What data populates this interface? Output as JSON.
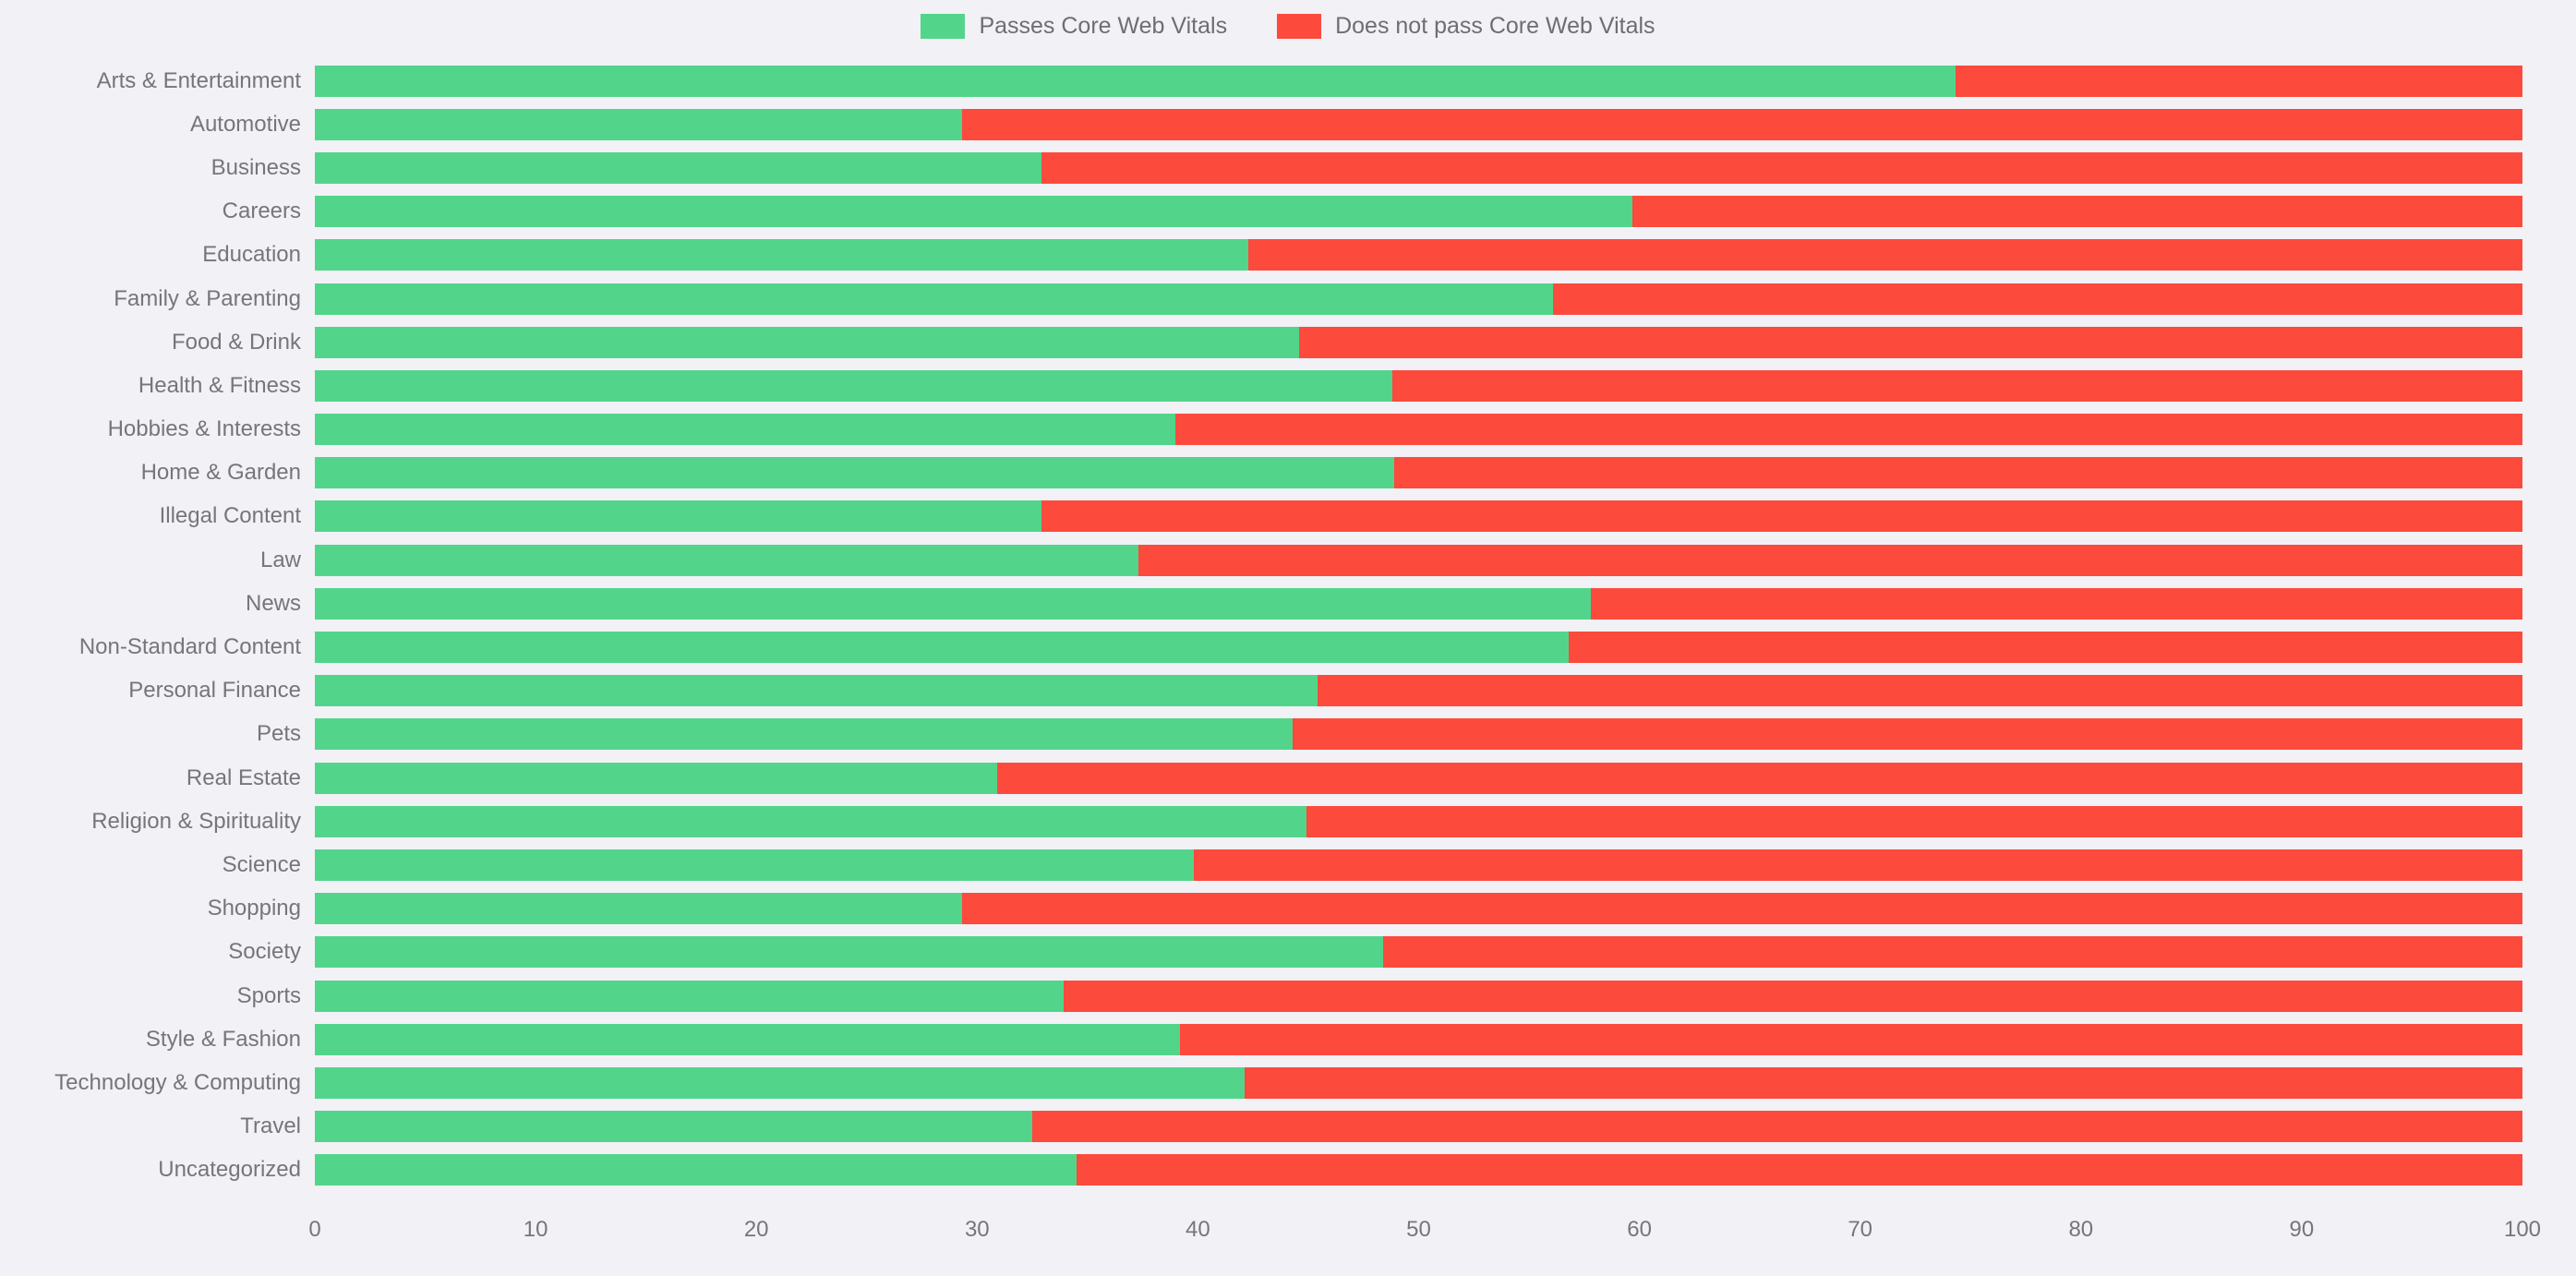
{
  "legend": {
    "passes_label": "Passes Core Web Vitals",
    "fails_label": "Does not pass Core Web Vitals"
  },
  "colors": {
    "passes": "#52D58B",
    "fails": "#FC4A3C",
    "background": "#F2F1F6",
    "text": "#76767A"
  },
  "chart_data": {
    "type": "bar",
    "orientation": "horizontal",
    "stacked": true,
    "stack_total": 100,
    "grid": false,
    "legend_position": "top",
    "xlim": [
      0,
      100
    ],
    "x_ticks": [
      0,
      10,
      20,
      30,
      40,
      50,
      60,
      70,
      80,
      90,
      100
    ],
    "categories": [
      "Arts & Entertainment",
      "Automotive",
      "Business",
      "Careers",
      "Education",
      "Family & Parenting",
      "Food & Drink",
      "Health & Fitness",
      "Hobbies & Interests",
      "Home & Garden",
      "Illegal Content",
      "Law",
      "News",
      "Non-Standard Content",
      "Personal Finance",
      "Pets",
      "Real Estate",
      "Religion & Spirituality",
      "Science",
      "Shopping",
      "Society",
      "Sports",
      "Style & Fashion",
      "Technology & Computing",
      "Travel",
      "Uncategorized"
    ],
    "series": [
      {
        "name": "Passes Core Web Vitals",
        "color": "#52D58B",
        "values": [
          74.3,
          29.3,
          32.9,
          59.7,
          42.3,
          56.1,
          44.6,
          48.8,
          39.0,
          48.9,
          32.9,
          37.3,
          57.8,
          56.8,
          45.4,
          44.3,
          30.9,
          44.9,
          39.8,
          29.3,
          48.4,
          33.9,
          39.2,
          42.1,
          32.5,
          34.5
        ]
      },
      {
        "name": "Does not pass Core Web Vitals",
        "color": "#FC4A3C",
        "values": [
          25.7,
          70.7,
          67.1,
          40.3,
          57.7,
          43.9,
          55.4,
          51.2,
          61.0,
          51.1,
          67.1,
          62.7,
          42.2,
          43.2,
          54.6,
          55.7,
          69.1,
          55.1,
          60.2,
          70.7,
          51.6,
          66.1,
          60.8,
          57.9,
          67.5,
          65.5
        ]
      }
    ]
  }
}
